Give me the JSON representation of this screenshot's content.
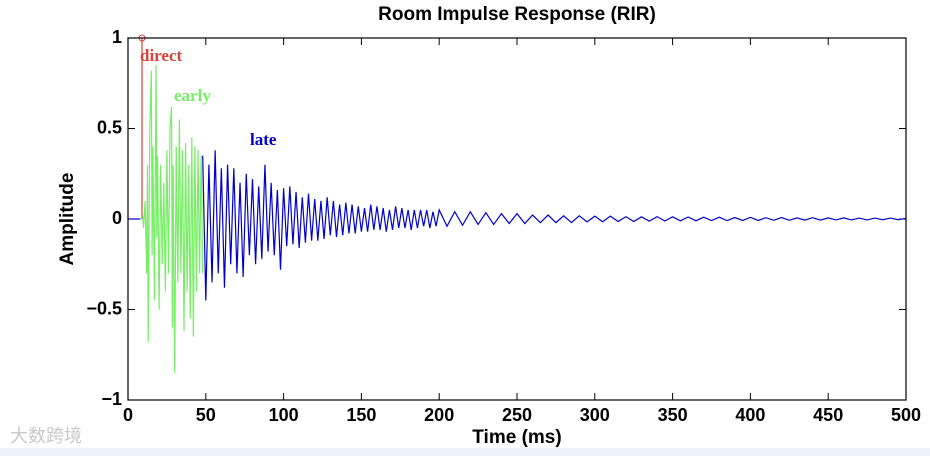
{
  "chart_data": {
    "type": "line",
    "title": "Room Impulse Response (RIR)",
    "xlabel": "Time (ms)",
    "ylabel": "Amplitude",
    "watermark": "大数跨境",
    "xlim": [
      0,
      500
    ],
    "xticks": [
      0,
      50,
      100,
      150,
      200,
      250,
      300,
      350,
      400,
      450,
      500
    ],
    "ylim": [
      -1,
      1
    ],
    "yticks": [
      {
        "value": -1,
        "label": "−1"
      },
      {
        "value": -0.5,
        "label": "−0.5"
      },
      0,
      0.5,
      1
    ],
    "grid": false,
    "series": [
      {
        "name": "direct",
        "color": "#e0403a",
        "style": "stem",
        "marker": "o",
        "x": [
          9
        ],
        "values": [
          1
        ]
      },
      {
        "name": "early",
        "color": "#77ee66",
        "style": "line",
        "x": [
          9.5,
          10,
          11,
          12,
          12.5,
          13,
          14,
          15,
          15.5,
          16,
          17,
          18,
          18.5,
          19,
          20,
          21,
          22,
          23,
          24,
          25,
          26,
          27,
          28,
          28.5,
          29,
          30,
          31,
          32,
          33,
          34,
          35,
          36,
          37,
          38,
          39,
          40,
          41,
          42,
          43,
          44,
          45,
          46,
          47,
          48
        ],
        "values": [
          0.02,
          -0.05,
          0.1,
          -0.3,
          0.3,
          -0.68,
          0.5,
          0.82,
          -0.2,
          0.4,
          -0.45,
          0.85,
          -0.1,
          0.35,
          -0.5,
          0.3,
          -0.25,
          0.2,
          -0.4,
          0.38,
          -0.3,
          0.5,
          0.62,
          -0.6,
          0.3,
          -0.85,
          0.4,
          -0.35,
          0.55,
          -0.3,
          0.38,
          -0.62,
          0.42,
          -0.4,
          0.3,
          -0.55,
          0.45,
          -0.65,
          0.4,
          -0.4,
          0.38,
          -0.3,
          0.35,
          -0.3
        ]
      },
      {
        "name": "late",
        "color": "#0000cc",
        "style": "line",
        "x": [
          0,
          8,
          9,
          48,
          50,
          52,
          54,
          56,
          58,
          60,
          62,
          64,
          66,
          68,
          70,
          72,
          74,
          76,
          78,
          80,
          82,
          84,
          86,
          88,
          90,
          92,
          94,
          96,
          98,
          100,
          102,
          104,
          106,
          108,
          110,
          112,
          114,
          116,
          118,
          120,
          122,
          124,
          126,
          128,
          130,
          132,
          134,
          136,
          138,
          140,
          142,
          144,
          146,
          148,
          150,
          152,
          154,
          156,
          158,
          160,
          162,
          164,
          166,
          168,
          170,
          172,
          174,
          176,
          178,
          180,
          182,
          184,
          186,
          188,
          190,
          192,
          194,
          196,
          198,
          200,
          205,
          210,
          215,
          220,
          225,
          230,
          235,
          240,
          245,
          250,
          255,
          260,
          265,
          270,
          275,
          280,
          285,
          290,
          295,
          300,
          305,
          310,
          315,
          320,
          325,
          330,
          335,
          340,
          345,
          350,
          355,
          360,
          365,
          370,
          375,
          380,
          385,
          390,
          395,
          400,
          405,
          410,
          415,
          420,
          425,
          430,
          435,
          440,
          445,
          450,
          455,
          460,
          465,
          470,
          475,
          480,
          485,
          490,
          495,
          500
        ],
        "values": [
          0,
          0,
          null,
          0.35,
          -0.45,
          0.3,
          -0.35,
          0.38,
          -0.3,
          0.28,
          -0.38,
          0.3,
          -0.25,
          0.28,
          -0.3,
          0.2,
          -0.32,
          0.25,
          -0.2,
          0.22,
          -0.25,
          0.18,
          -0.22,
          0.3,
          -0.18,
          0.2,
          -0.2,
          0.16,
          -0.28,
          0.17,
          -0.15,
          0.18,
          -0.14,
          0.15,
          -0.16,
          0.12,
          -0.13,
          0.14,
          -0.12,
          0.11,
          -0.12,
          0.1,
          -0.11,
          0.12,
          -0.09,
          0.1,
          -0.1,
          0.08,
          -0.09,
          0.09,
          -0.08,
          0.08,
          -0.08,
          0.07,
          -0.07,
          0.06,
          -0.07,
          0.08,
          -0.06,
          0.07,
          -0.06,
          0.06,
          -0.07,
          0.05,
          -0.06,
          0.07,
          -0.05,
          0.06,
          -0.05,
          0.05,
          -0.06,
          0.05,
          -0.05,
          0.05,
          -0.04,
          0.05,
          -0.05,
          0.04,
          -0.04,
          0.05,
          -0.04,
          0.04,
          -0.035,
          0.04,
          -0.03,
          0.035,
          -0.03,
          0.03,
          -0.025,
          0.03,
          -0.025,
          0.022,
          -0.02,
          0.022,
          -0.02,
          0.018,
          -0.02,
          0.018,
          -0.016,
          0.016,
          -0.015,
          0.016,
          -0.014,
          0.013,
          -0.014,
          0.012,
          -0.012,
          0.013,
          -0.011,
          0.012,
          -0.01,
          0.011,
          -0.01,
          0.01,
          -0.009,
          0.01,
          -0.009,
          0.008,
          -0.008,
          0.009,
          -0.008,
          0.007,
          -0.007,
          0.008,
          -0.007,
          0.006,
          -0.006,
          0.007,
          -0.006,
          0.006,
          -0.005,
          0.006,
          -0.005,
          0.005,
          -0.005,
          0.005,
          -0.004,
          0.005,
          -0.004,
          0.004
        ]
      }
    ]
  }
}
